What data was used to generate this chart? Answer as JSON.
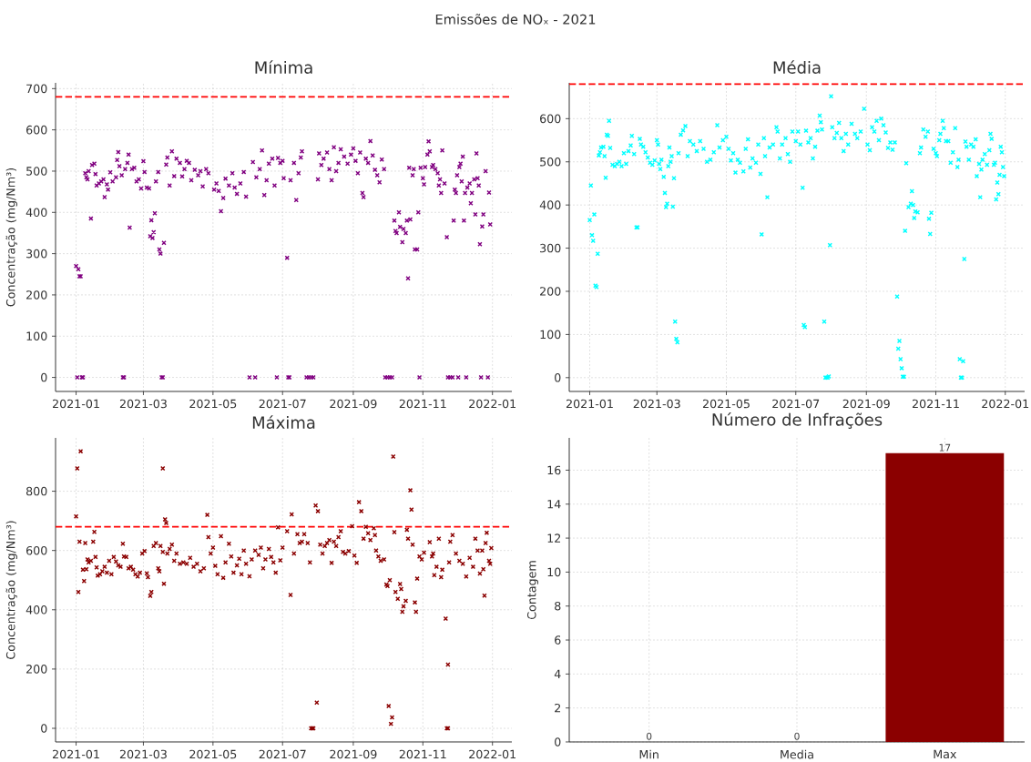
{
  "chart_data": [
    {
      "type": "other",
      "title": "Emissões de NOₓ - 2021"
    },
    {
      "type": "scatter",
      "title": "Mínima",
      "ylabel": "Concentração (mg/Nm³)",
      "color": "#800080",
      "marker": "cross",
      "grid": true,
      "xlim": [
        "2020-12-14",
        "2022-01-18"
      ],
      "xticks": [
        "2021-01",
        "2021-03",
        "2021-05",
        "2021-07",
        "2021-09",
        "2021-11",
        "2022-01"
      ],
      "ylim": [
        -34,
        714
      ],
      "yticks": [
        0,
        100,
        200,
        300,
        400,
        500,
        600,
        700
      ],
      "ref_lines": [
        {
          "axis": "y",
          "value": 680,
          "color": "#ff0000",
          "line_style": "dashed"
        }
      ],
      "x": [
        "2021-01-01",
        "2021-01-02",
        "2021-01-03",
        "2021-01-04",
        "2021-01-05",
        "2021-01-06",
        "2021-01-07",
        "2021-01-09",
        "2021-01-10",
        "2021-01-11",
        "2021-01-12",
        "2021-01-14",
        "2021-01-15",
        "2021-01-17",
        "2021-01-18",
        "2021-01-19",
        "2021-01-21",
        "2021-01-23",
        "2021-01-25",
        "2021-01-26",
        "2021-01-28",
        "2021-01-29",
        "2021-01-31",
        "2021-02-02",
        "2021-02-05",
        "2021-02-06",
        "2021-02-07",
        "2021-02-08",
        "2021-02-10",
        "2021-02-11",
        "2021-02-12",
        "2021-02-13",
        "2021-02-15",
        "2021-02-16",
        "2021-02-17",
        "2021-02-19",
        "2021-02-21",
        "2021-02-23",
        "2021-02-25",
        "2021-02-27",
        "2021-03-01",
        "2021-03-02",
        "2021-03-04",
        "2021-03-06",
        "2021-03-07",
        "2021-03-08",
        "2021-03-09",
        "2021-03-10",
        "2021-03-11",
        "2021-03-12",
        "2021-03-14",
        "2021-03-15",
        "2021-03-16",
        "2021-03-17",
        "2021-03-18",
        "2021-03-19",
        "2021-03-21",
        "2021-03-22",
        "2021-03-24",
        "2021-03-26",
        "2021-03-28",
        "2021-03-30",
        "2021-04-02",
        "2021-04-04",
        "2021-04-06",
        "2021-04-08",
        "2021-04-10",
        "2021-04-12",
        "2021-04-15",
        "2021-04-18",
        "2021-04-20",
        "2021-04-22",
        "2021-04-25",
        "2021-04-27",
        "2021-05-02",
        "2021-05-04",
        "2021-05-06",
        "2021-05-08",
        "2021-05-10",
        "2021-05-12",
        "2021-05-15",
        "2021-05-18",
        "2021-05-20",
        "2021-05-22",
        "2021-05-25",
        "2021-05-28",
        "2021-05-30",
        "2021-06-02",
        "2021-06-05",
        "2021-06-07",
        "2021-06-08",
        "2021-06-11",
        "2021-06-13",
        "2021-06-15",
        "2021-06-17",
        "2021-06-19",
        "2021-06-22",
        "2021-06-24",
        "2021-06-26",
        "2021-06-27",
        "2021-06-29",
        "2021-07-01",
        "2021-07-02",
        "2021-07-05",
        "2021-07-06",
        "2021-07-07",
        "2021-07-08",
        "2021-07-11",
        "2021-07-13",
        "2021-07-15",
        "2021-07-17",
        "2021-07-18",
        "2021-07-22",
        "2021-07-24",
        "2021-07-26",
        "2021-07-28",
        "2021-08-01",
        "2021-08-02",
        "2021-08-04",
        "2021-08-06",
        "2021-08-09",
        "2021-08-11",
        "2021-08-13",
        "2021-08-15",
        "2021-08-17",
        "2021-08-19",
        "2021-08-21",
        "2021-08-24",
        "2021-08-27",
        "2021-08-30",
        "2021-09-01",
        "2021-09-03",
        "2021-09-05",
        "2021-09-07",
        "2021-09-09",
        "2021-09-10",
        "2021-09-12",
        "2021-09-14",
        "2021-09-16",
        "2021-09-18",
        "2021-09-20",
        "2021-09-22",
        "2021-09-24",
        "2021-09-26",
        "2021-09-28",
        "2021-09-29",
        "2021-10-01",
        "2021-10-03",
        "2021-10-05",
        "2021-10-07",
        "2021-10-08",
        "2021-10-09",
        "2021-10-11",
        "2021-10-12",
        "2021-10-14",
        "2021-10-15",
        "2021-10-17",
        "2021-10-18",
        "2021-10-19",
        "2021-10-20",
        "2021-10-21",
        "2021-10-23",
        "2021-10-24",
        "2021-10-25",
        "2021-10-27",
        "2021-10-28",
        "2021-10-29",
        "2021-10-30",
        "2021-11-01",
        "2021-11-02",
        "2021-11-03",
        "2021-11-05",
        "2021-11-06",
        "2021-11-07",
        "2021-11-09",
        "2021-11-10",
        "2021-11-12",
        "2021-11-14",
        "2021-11-15",
        "2021-11-16",
        "2021-11-17",
        "2021-11-18",
        "2021-11-20",
        "2021-11-22",
        "2021-11-23",
        "2021-11-25",
        "2021-11-27",
        "2021-11-28",
        "2021-11-29",
        "2021-11-30",
        "2021-12-01",
        "2021-12-02",
        "2021-12-03",
        "2021-12-04",
        "2021-12-05",
        "2021-12-06",
        "2021-12-07",
        "2021-12-08",
        "2021-12-09",
        "2021-12-10",
        "2021-12-12",
        "2021-12-13",
        "2021-12-14",
        "2021-12-16",
        "2021-12-17",
        "2021-12-18",
        "2021-12-19",
        "2021-12-20",
        "2021-12-21",
        "2021-12-22",
        "2021-12-23",
        "2021-12-24",
        "2021-12-26",
        "2021-12-28",
        "2021-12-29",
        "2021-12-30"
      ],
      "values": [
        270,
        0,
        262,
        245,
        245,
        0,
        0,
        495,
        485,
        480,
        500,
        385,
        515,
        518,
        493,
        465,
        470,
        475,
        480,
        437,
        468,
        455,
        497,
        475,
        485,
        527,
        546,
        512,
        490,
        0,
        0,
        505,
        520,
        540,
        363,
        505,
        508,
        475,
        480,
        458,
        524,
        498,
        460,
        458,
        342,
        381,
        338,
        352,
        398,
        475,
        498,
        310,
        300,
        0,
        0,
        326,
        516,
        533,
        465,
        548,
        488,
        530,
        520,
        487,
        505,
        525,
        520,
        478,
        503,
        490,
        500,
        463,
        505,
        495,
        455,
        470,
        452,
        403,
        435,
        482,
        465,
        495,
        460,
        445,
        470,
        498,
        438,
        0,
        522,
        0,
        485,
        505,
        550,
        442,
        478,
        518,
        530,
        465,
        0,
        532,
        520,
        525,
        483,
        290,
        0,
        0,
        478,
        520,
        430,
        495,
        533,
        548,
        0,
        0,
        0,
        0,
        480,
        543,
        515,
        530,
        545,
        505,
        478,
        558,
        500,
        520,
        553,
        535,
        518,
        540,
        555,
        525,
        495,
        545,
        447,
        437,
        530,
        520,
        573,
        538,
        503,
        490,
        473,
        528,
        505,
        0,
        0,
        0,
        0,
        380,
        355,
        350,
        400,
        365,
        328,
        360,
        350,
        380,
        240,
        508,
        383,
        490,
        505,
        310,
        310,
        400,
        0,
        508,
        483,
        468,
        510,
        540,
        572,
        548,
        510,
        515,
        505,
        495,
        465,
        480,
        447,
        550,
        470,
        340,
        0,
        0,
        0,
        380,
        455,
        447,
        490,
        0,
        510,
        518,
        475,
        535,
        380,
        447,
        0,
        460,
        470,
        422,
        447,
        480,
        395,
        543,
        483,
        465,
        323,
        0,
        366,
        395,
        500,
        0,
        448,
        371
      ]
    },
    {
      "type": "scatter",
      "title": "Média",
      "color": "#00ffff",
      "marker": "cross",
      "grid": true,
      "xlim": [
        "2020-12-14",
        "2022-01-18"
      ],
      "xticks": [
        "2021-01",
        "2021-03",
        "2021-05",
        "2021-07",
        "2021-09",
        "2021-11",
        "2022-01"
      ],
      "ylim": [
        -32,
        683
      ],
      "yticks": [
        0,
        100,
        200,
        300,
        400,
        500,
        600
      ],
      "ref_lines": [
        {
          "axis": "y",
          "value": 680,
          "color": "#ff0000",
          "line_style": "dashed"
        }
      ],
      "x": [
        "2021-01-01",
        "2021-01-02",
        "2021-01-03",
        "2021-01-04",
        "2021-01-05",
        "2021-01-06",
        "2021-01-07",
        "2021-01-08",
        "2021-01-09",
        "2021-01-10",
        "2021-01-11",
        "2021-01-13",
        "2021-01-14",
        "2021-01-15",
        "2021-01-16",
        "2021-01-17",
        "2021-01-18",
        "2021-01-19",
        "2021-01-21",
        "2021-01-23",
        "2021-01-25",
        "2021-01-27",
        "2021-01-29",
        "2021-01-31",
        "2021-02-02",
        "2021-02-04",
        "2021-02-06",
        "2021-02-07",
        "2021-02-09",
        "2021-02-11",
        "2021-02-12",
        "2021-02-14",
        "2021-02-15",
        "2021-02-17",
        "2021-02-19",
        "2021-02-21",
        "2021-02-23",
        "2021-02-25",
        "2021-02-27",
        "2021-03-01",
        "2021-03-02",
        "2021-03-03",
        "2021-03-04",
        "2021-03-05",
        "2021-03-07",
        "2021-03-08",
        "2021-03-09",
        "2021-03-10",
        "2021-03-11",
        "2021-03-12",
        "2021-03-13",
        "2021-03-14",
        "2021-03-15",
        "2021-03-16",
        "2021-03-17",
        "2021-03-18",
        "2021-03-19",
        "2021-03-20",
        "2021-03-22",
        "2021-03-24",
        "2021-03-26",
        "2021-03-28",
        "2021-03-30",
        "2021-04-02",
        "2021-04-05",
        "2021-04-08",
        "2021-04-11",
        "2021-04-14",
        "2021-04-17",
        "2021-04-20",
        "2021-04-23",
        "2021-04-25",
        "2021-04-28",
        "2021-05-01",
        "2021-05-03",
        "2021-05-05",
        "2021-05-07",
        "2021-05-09",
        "2021-05-11",
        "2021-05-13",
        "2021-05-16",
        "2021-05-18",
        "2021-05-20",
        "2021-05-22",
        "2021-05-24",
        "2021-05-27",
        "2021-05-29",
        "2021-05-31",
        "2021-06-01",
        "2021-06-03",
        "2021-06-04",
        "2021-06-06",
        "2021-06-08",
        "2021-06-11",
        "2021-06-14",
        "2021-06-15",
        "2021-06-17",
        "2021-06-19",
        "2021-06-22",
        "2021-06-24",
        "2021-06-26",
        "2021-06-28",
        "2021-07-01",
        "2021-07-03",
        "2021-07-05",
        "2021-07-07",
        "2021-07-08",
        "2021-07-09",
        "2021-07-10",
        "2021-07-12",
        "2021-07-14",
        "2021-07-16",
        "2021-07-18",
        "2021-07-20",
        "2021-07-22",
        "2021-07-23",
        "2021-07-24",
        "2021-07-26",
        "2021-07-27",
        "2021-07-28",
        "2021-07-29",
        "2021-07-30",
        "2021-07-31",
        "2021-08-01",
        "2021-08-02",
        "2021-08-04",
        "2021-08-06",
        "2021-08-08",
        "2021-08-10",
        "2021-08-12",
        "2021-08-14",
        "2021-08-16",
        "2021-08-19",
        "2021-08-22",
        "2021-08-24",
        "2021-08-27",
        "2021-08-30",
        "2021-09-02",
        "2021-09-04",
        "2021-09-06",
        "2021-09-08",
        "2021-09-10",
        "2021-09-12",
        "2021-09-14",
        "2021-09-16",
        "2021-09-18",
        "2021-09-20",
        "2021-09-22",
        "2021-09-24",
        "2021-09-26",
        "2021-09-28",
        "2021-09-29",
        "2021-09-30",
        "2021-10-01",
        "2021-10-02",
        "2021-10-03",
        "2021-10-04",
        "2021-10-05",
        "2021-10-06",
        "2021-10-08",
        "2021-10-10",
        "2021-10-11",
        "2021-10-12",
        "2021-10-13",
        "2021-10-14",
        "2021-10-16",
        "2021-10-18",
        "2021-10-19",
        "2021-10-21",
        "2021-10-23",
        "2021-10-25",
        "2021-10-26",
        "2021-10-27",
        "2021-10-28",
        "2021-10-30",
        "2021-11-01",
        "2021-11-02",
        "2021-11-04",
        "2021-11-05",
        "2021-11-07",
        "2021-11-08",
        "2021-11-10",
        "2021-11-12",
        "2021-11-14",
        "2021-11-16",
        "2021-11-18",
        "2021-11-20",
        "2021-11-21",
        "2021-11-22",
        "2021-11-23",
        "2021-11-24",
        "2021-11-25",
        "2021-11-26",
        "2021-11-27",
        "2021-11-28",
        "2021-11-30",
        "2021-12-02",
        "2021-12-04",
        "2021-12-06",
        "2021-12-07",
        "2021-12-09",
        "2021-12-10",
        "2021-12-11",
        "2021-12-12",
        "2021-12-14",
        "2021-12-16",
        "2021-12-18",
        "2021-12-19",
        "2021-12-20",
        "2021-12-22",
        "2021-12-23",
        "2021-12-24",
        "2021-12-25",
        "2021-12-26",
        "2021-12-27",
        "2021-12-28",
        "2021-12-29",
        "2021-12-30",
        "2021-12-31"
      ],
      "values": [
        365,
        445,
        330,
        317,
        378,
        213,
        210,
        287,
        515,
        522,
        533,
        535,
        513,
        463,
        563,
        560,
        595,
        532,
        493,
        490,
        495,
        500,
        490,
        520,
        495,
        525,
        538,
        560,
        518,
        348,
        348,
        553,
        540,
        535,
        522,
        510,
        498,
        493,
        503,
        550,
        540,
        495,
        483,
        505,
        465,
        428,
        395,
        403,
        490,
        533,
        500,
        513,
        396,
        462,
        130,
        90,
        82,
        520,
        563,
        573,
        583,
        513,
        548,
        540,
        525,
        548,
        530,
        500,
        505,
        522,
        585,
        533,
        550,
        558,
        530,
        503,
        520,
        475,
        505,
        498,
        478,
        530,
        552,
        487,
        508,
        498,
        540,
        472,
        332,
        555,
        513,
        418,
        533,
        540,
        580,
        570,
        508,
        540,
        555,
        518,
        500,
        570,
        548,
        570,
        540,
        440,
        122,
        117,
        572,
        545,
        555,
        508,
        535,
        572,
        607,
        592,
        575,
        130,
        0,
        0,
        0,
        3,
        307,
        652,
        580,
        555,
        567,
        590,
        555,
        525,
        565,
        540,
        588,
        565,
        555,
        570,
        623,
        540,
        527,
        580,
        570,
        595,
        550,
        600,
        585,
        568,
        532,
        545,
        528,
        545,
        188,
        67,
        85,
        43,
        22,
        2,
        2,
        340,
        497,
        395,
        403,
        432,
        400,
        370,
        385,
        383,
        520,
        533,
        575,
        558,
        570,
        368,
        333,
        382,
        530,
        520,
        513,
        550,
        565,
        595,
        578,
        548,
        548,
        498,
        522,
        578,
        488,
        505,
        43,
        0,
        0,
        38,
        275,
        547,
        535,
        505,
        540,
        535,
        552,
        467,
        495,
        418,
        482,
        505,
        518,
        493,
        527,
        565,
        553,
        493,
        498,
        413,
        452,
        425,
        470,
        535,
        522,
        488,
        467
      ]
    },
    {
      "type": "scatter",
      "title": "Máxima",
      "ylabel": "Concentração (mg/Nm³)",
      "color": "#8b0000",
      "marker": "cross",
      "grid": true,
      "xlim": [
        "2020-12-14",
        "2022-01-18"
      ],
      "xticks": [
        "2021-01",
        "2021-03",
        "2021-05",
        "2021-07",
        "2021-09",
        "2021-11",
        "2022-01"
      ],
      "ylim": [
        -46,
        980
      ],
      "yticks": [
        0,
        200,
        400,
        600,
        800
      ],
      "ref_lines": [
        {
          "axis": "y",
          "value": 680,
          "color": "#ff0000",
          "line_style": "dashed"
        }
      ],
      "x": [
        "2021-01-01",
        "2021-01-02",
        "2021-01-03",
        "2021-01-04",
        "2021-01-05",
        "2021-01-07",
        "2021-01-08",
        "2021-01-09",
        "2021-01-10",
        "2021-01-11",
        "2021-01-12",
        "2021-01-14",
        "2021-01-16",
        "2021-01-17",
        "2021-01-18",
        "2021-01-19",
        "2021-01-20",
        "2021-01-22",
        "2021-01-24",
        "2021-01-26",
        "2021-01-28",
        "2021-01-30",
        "2021-02-01",
        "2021-02-03",
        "2021-02-05",
        "2021-02-07",
        "2021-02-09",
        "2021-02-11",
        "2021-02-12",
        "2021-02-14",
        "2021-02-16",
        "2021-02-18",
        "2021-02-20",
        "2021-02-22",
        "2021-02-24",
        "2021-02-26",
        "2021-02-28",
        "2021-03-02",
        "2021-03-04",
        "2021-03-05",
        "2021-03-07",
        "2021-03-08",
        "2021-03-10",
        "2021-03-12",
        "2021-03-14",
        "2021-03-15",
        "2021-03-16",
        "2021-03-18",
        "2021-03-18",
        "2021-03-19",
        "2021-03-20",
        "2021-03-21",
        "2021-03-22",
        "2021-03-24",
        "2021-03-26",
        "2021-03-28",
        "2021-03-30",
        "2021-04-02",
        "2021-04-05",
        "2021-04-08",
        "2021-04-11",
        "2021-04-14",
        "2021-04-17",
        "2021-04-20",
        "2021-04-23",
        "2021-04-26",
        "2021-04-27",
        "2021-04-29",
        "2021-05-01",
        "2021-05-03",
        "2021-05-05",
        "2021-05-08",
        "2021-05-10",
        "2021-05-12",
        "2021-05-15",
        "2021-05-17",
        "2021-05-19",
        "2021-05-22",
        "2021-05-24",
        "2021-05-26",
        "2021-05-28",
        "2021-05-30",
        "2021-06-02",
        "2021-06-04",
        "2021-06-07",
        "2021-06-10",
        "2021-06-12",
        "2021-06-14",
        "2021-06-16",
        "2021-06-19",
        "2021-06-21",
        "2021-06-23",
        "2021-06-25",
        "2021-06-27",
        "2021-06-29",
        "2021-07-01",
        "2021-07-05",
        "2021-07-08",
        "2021-07-09",
        "2021-07-11",
        "2021-07-14",
        "2021-07-16",
        "2021-07-18",
        "2021-07-20",
        "2021-07-23",
        "2021-07-25",
        "2021-07-26",
        "2021-07-27",
        "2021-07-28",
        "2021-07-30",
        "2021-07-31",
        "2021-08-01",
        "2021-08-03",
        "2021-08-05",
        "2021-08-07",
        "2021-08-09",
        "2021-08-11",
        "2021-08-13",
        "2021-08-15",
        "2021-08-17",
        "2021-08-19",
        "2021-08-21",
        "2021-08-23",
        "2021-08-25",
        "2021-08-28",
        "2021-08-31",
        "2021-09-02",
        "2021-09-04",
        "2021-09-06",
        "2021-09-08",
        "2021-09-10",
        "2021-09-12",
        "2021-09-14",
        "2021-09-16",
        "2021-09-19",
        "2021-09-20",
        "2021-09-21",
        "2021-09-23",
        "2021-09-25",
        "2021-09-28",
        "2021-09-30",
        "2021-10-01",
        "2021-10-02",
        "2021-10-03",
        "2021-10-04",
        "2021-10-05",
        "2021-10-06",
        "2021-10-07",
        "2021-10-08",
        "2021-10-10",
        "2021-10-12",
        "2021-10-13",
        "2021-10-14",
        "2021-10-15",
        "2021-10-17",
        "2021-10-18",
        "2021-10-19",
        "2021-10-21",
        "2021-10-22",
        "2021-10-23",
        "2021-10-25",
        "2021-10-26",
        "2021-10-27",
        "2021-10-29",
        "2021-10-31",
        "2021-11-02",
        "2021-11-07",
        "2021-11-09",
        "2021-11-10",
        "2021-11-11",
        "2021-11-13",
        "2021-11-15",
        "2021-11-17",
        "2021-11-18",
        "2021-11-21",
        "2021-11-22",
        "2021-11-23",
        "2021-11-23",
        "2021-11-24",
        "2021-11-25",
        "2021-11-27",
        "2021-11-30",
        "2021-12-03",
        "2021-12-06",
        "2021-12-09",
        "2021-12-12",
        "2021-12-15",
        "2021-12-17",
        "2021-12-19",
        "2021-12-21",
        "2021-12-23",
        "2021-12-24",
        "2021-12-25",
        "2021-12-26",
        "2021-12-27",
        "2021-12-29",
        "2021-12-30",
        "2021-12-31"
      ],
      "values": [
        715,
        877,
        460,
        630,
        935,
        535,
        497,
        625,
        537,
        570,
        560,
        565,
        630,
        663,
        578,
        543,
        515,
        520,
        530,
        545,
        525,
        565,
        520,
        578,
        563,
        550,
        545,
        623,
        580,
        578,
        540,
        545,
        535,
        520,
        512,
        525,
        590,
        598,
        523,
        510,
        447,
        460,
        615,
        625,
        540,
        530,
        615,
        877,
        595,
        488,
        705,
        693,
        590,
        605,
        620,
        565,
        590,
        555,
        560,
        555,
        575,
        545,
        555,
        530,
        540,
        720,
        645,
        590,
        610,
        548,
        520,
        648,
        508,
        560,
        623,
        580,
        525,
        550,
        572,
        520,
        600,
        555,
        513,
        570,
        600,
        585,
        610,
        540,
        570,
        605,
        578,
        560,
        525,
        678,
        567,
        610,
        665,
        450,
        722,
        590,
        655,
        625,
        630,
        655,
        625,
        560,
        0,
        0,
        0,
        752,
        87,
        733,
        620,
        590,
        615,
        625,
        635,
        558,
        630,
        615,
        645,
        665,
        595,
        590,
        598,
        682,
        583,
        558,
        763,
        733,
        640,
        680,
        658,
        635,
        675,
        652,
        600,
        580,
        565,
        570,
        485,
        480,
        75,
        500,
        15,
        37,
        917,
        662,
        460,
        437,
        487,
        470,
        393,
        412,
        430,
        670,
        640,
        803,
        738,
        620,
        425,
        393,
        505,
        580,
        570,
        593,
        628,
        580,
        590,
        517,
        545,
        640,
        510,
        535,
        370,
        0,
        0,
        215,
        560,
        630,
        652,
        590,
        565,
        555,
        512,
        575,
        545,
        640,
        600,
        522,
        600,
        537,
        448,
        625,
        660,
        565,
        555,
        608
      ]
    },
    {
      "type": "bar",
      "title": "Número de Infrações",
      "ylabel": "Contagem",
      "categories": [
        "Min",
        "Media",
        "Max"
      ],
      "values": [
        0,
        0,
        17
      ],
      "color": "#8b0000",
      "grid": true,
      "data_labels": true,
      "ylim": [
        0,
        17.9
      ],
      "yticks": [
        0,
        2,
        4,
        6,
        8,
        10,
        12,
        14,
        16
      ]
    }
  ]
}
